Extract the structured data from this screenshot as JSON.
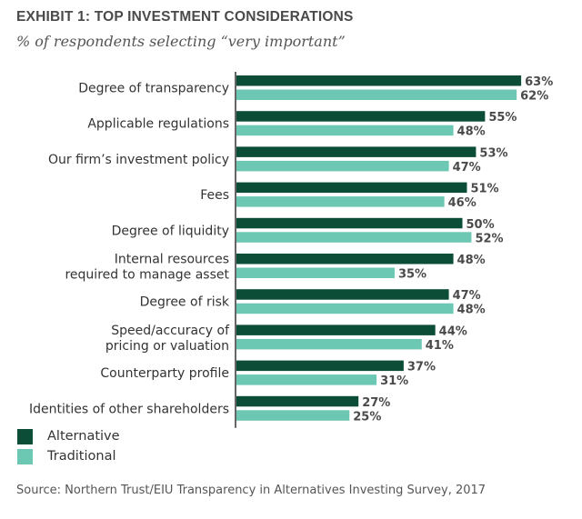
{
  "chart_data": {
    "type": "bar",
    "orientation": "horizontal",
    "title": "EXHIBIT 1: TOP INVESTMENT CONSIDERATIONS",
    "subtitle": "% of respondents selecting “very important”",
    "xlabel": "",
    "ylabel": "",
    "xlim": [
      0,
      100
    ],
    "grid": false,
    "legend_position": "bottom-left",
    "categories": [
      [
        "Degree of transparency"
      ],
      [
        "Applicable regulations"
      ],
      [
        "Our firm’s investment policy"
      ],
      [
        "Fees"
      ],
      [
        "Degree of liquidity"
      ],
      [
        "Internal resources",
        "required to manage asset"
      ],
      [
        "Degree of risk"
      ],
      [
        "Speed/accuracy of",
        "pricing or valuation"
      ],
      [
        "Counterparty profile"
      ],
      [
        "Identities of other shareholders"
      ]
    ],
    "series": [
      {
        "name": "Alternative",
        "color": "#0b4d36",
        "values": [
          63,
          55,
          53,
          51,
          50,
          48,
          47,
          44,
          37,
          27
        ]
      },
      {
        "name": "Traditional",
        "color": "#6cc7b3",
        "values": [
          62,
          48,
          47,
          46,
          52,
          35,
          48,
          41,
          31,
          25
        ]
      }
    ],
    "value_suffix": "%"
  },
  "source": "Source: Northern Trust/EIU Transparency in Alternatives Investing Survey, 2017"
}
